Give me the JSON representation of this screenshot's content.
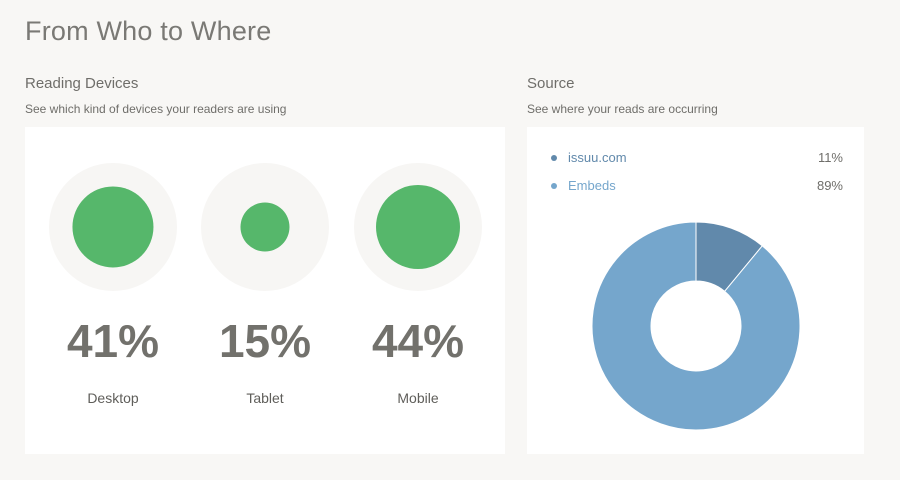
{
  "page_title": "From Who to Where",
  "devices": {
    "title": "Reading Devices",
    "subtitle": "See which kind of devices your readers are using",
    "items": [
      {
        "label": "Desktop",
        "value": 41,
        "display": "41%"
      },
      {
        "label": "Tablet",
        "value": 15,
        "display": "15%"
      },
      {
        "label": "Mobile",
        "value": 44,
        "display": "44%"
      }
    ],
    "dot_color": "#56b76b",
    "ring_color": "#f7f6f4"
  },
  "source": {
    "title": "Source",
    "subtitle": "See where your reads are occurring",
    "legend": [
      {
        "label": "issuu.com",
        "display": "11%",
        "color": "#6189ab"
      },
      {
        "label": "Embeds",
        "display": "89%",
        "color": "#75a6cc"
      }
    ]
  },
  "chart_data": [
    {
      "type": "bubble",
      "title": "Reading Devices",
      "categories": [
        "Desktop",
        "Tablet",
        "Mobile"
      ],
      "values": [
        41,
        15,
        44
      ],
      "unit": "%"
    },
    {
      "type": "pie",
      "variant": "donut",
      "title": "Source",
      "categories": [
        "issuu.com",
        "Embeds"
      ],
      "values": [
        11,
        89
      ],
      "unit": "%",
      "colors": [
        "#6189ab",
        "#75a6cc"
      ],
      "legend": "top"
    }
  ]
}
